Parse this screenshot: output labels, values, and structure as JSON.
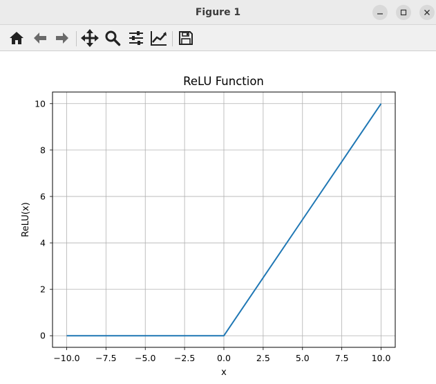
{
  "window": {
    "title": "Figure 1",
    "controls": [
      "minimize-icon",
      "maximize-icon",
      "close-icon"
    ]
  },
  "toolbar": {
    "tools": [
      {
        "name": "home",
        "icon": "home-icon"
      },
      {
        "name": "back",
        "icon": "arrow-left-icon"
      },
      {
        "name": "forward",
        "icon": "arrow-right-icon"
      },
      {
        "name": "pan",
        "icon": "move-icon"
      },
      {
        "name": "zoom",
        "icon": "magnifier-icon"
      },
      {
        "name": "configure-subplots",
        "icon": "sliders-icon"
      },
      {
        "name": "edit-axes",
        "icon": "line-chart-icon"
      },
      {
        "name": "save",
        "icon": "floppy-disk-icon"
      }
    ]
  },
  "chart_data": {
    "type": "line",
    "title": "ReLU Function",
    "xlabel": "x",
    "ylabel": "ReLU(x)",
    "xlim": [
      -10.9,
      10.9
    ],
    "ylim": [
      -0.5,
      10.5
    ],
    "xticks": [
      "−10.0",
      "−7.5",
      "−5.0",
      "−2.5",
      "0.0",
      "2.5",
      "5.0",
      "7.5",
      "10.0"
    ],
    "xtick_values": [
      -10,
      -7.5,
      -5,
      -2.5,
      0,
      2.5,
      5,
      7.5,
      10
    ],
    "yticks": [
      "0",
      "2",
      "4",
      "6",
      "8",
      "10"
    ],
    "ytick_values": [
      0,
      2,
      4,
      6,
      8,
      10
    ],
    "grid": true,
    "series": [
      {
        "color": "#1f77b4",
        "x": [
          -10,
          -7.5,
          -5,
          -2.5,
          0,
          2.5,
          5,
          7.5,
          10
        ],
        "y": [
          0,
          0,
          0,
          0,
          0,
          2.5,
          5,
          7.5,
          10
        ]
      }
    ]
  }
}
